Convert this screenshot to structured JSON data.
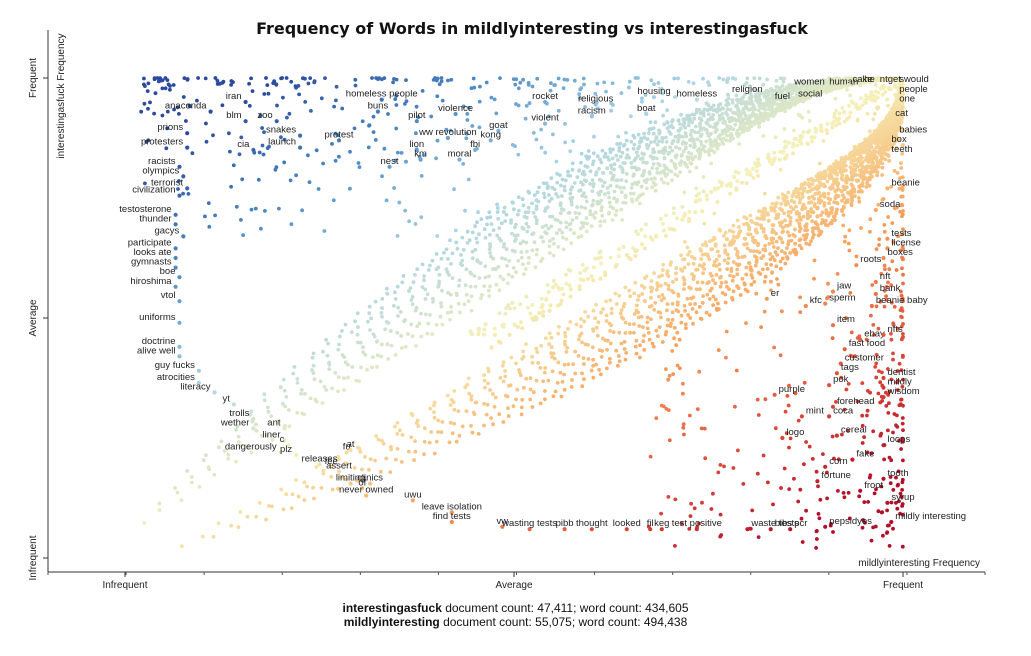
{
  "chart_data": {
    "type": "scatter",
    "title": "Frequency of Words in mildlyinteresting vs interestingasfuck",
    "xlabel": "mildlyinteresting Frequency",
    "ylabel": "interestingasfuck Frequency",
    "x_ticks": [
      "Infrequent",
      "Average",
      "Frequent"
    ],
    "y_ticks": [
      "Infrequent",
      "Average",
      "Frequent"
    ],
    "xlim": [
      0,
      1
    ],
    "ylim": [
      0,
      1
    ],
    "color_scale": [
      "#2b4a9e",
      "#4d8ac2",
      "#a9d3e6",
      "#f5f0b8",
      "#f7a25b",
      "#e0503a",
      "#b0102a"
    ],
    "points": [
      {
        "word": "anaconda",
        "x": 0.11,
        "y": 0.93
      },
      {
        "word": "iran",
        "x": 0.155,
        "y": 0.95
      },
      {
        "word": "blm",
        "x": 0.155,
        "y": 0.91
      },
      {
        "word": "zoo",
        "x": 0.195,
        "y": 0.91
      },
      {
        "word": "prions",
        "x": 0.08,
        "y": 0.885
      },
      {
        "word": "snakes",
        "x": 0.225,
        "y": 0.88
      },
      {
        "word": "protest",
        "x": 0.275,
        "y": 0.87
      },
      {
        "word": "protesters",
        "x": 0.08,
        "y": 0.855
      },
      {
        "word": "cia",
        "x": 0.165,
        "y": 0.85
      },
      {
        "word": "launch",
        "x": 0.225,
        "y": 0.855
      },
      {
        "word": "racists",
        "x": 0.07,
        "y": 0.815
      },
      {
        "word": "olympics",
        "x": 0.075,
        "y": 0.795
      },
      {
        "word": "terrorist",
        "x": 0.08,
        "y": 0.77
      },
      {
        "word": "civilization",
        "x": 0.07,
        "y": 0.755
      },
      {
        "word": "testosterone",
        "x": 0.065,
        "y": 0.715
      },
      {
        "word": "thunder",
        "x": 0.065,
        "y": 0.695
      },
      {
        "word": "gacys",
        "x": 0.075,
        "y": 0.67
      },
      {
        "word": "participate",
        "x": 0.065,
        "y": 0.645
      },
      {
        "word": "looks ate",
        "x": 0.065,
        "y": 0.625
      },
      {
        "word": "gymnasts",
        "x": 0.065,
        "y": 0.605
      },
      {
        "word": "boe",
        "x": 0.07,
        "y": 0.585
      },
      {
        "word": "hiroshima",
        "x": 0.065,
        "y": 0.565
      },
      {
        "word": "vtol",
        "x": 0.07,
        "y": 0.535
      },
      {
        "word": "uniforms",
        "x": 0.07,
        "y": 0.49
      },
      {
        "word": "doctrine",
        "x": 0.07,
        "y": 0.44
      },
      {
        "word": "alive well",
        "x": 0.07,
        "y": 0.42
      },
      {
        "word": "guy fucks",
        "x": 0.095,
        "y": 0.39
      },
      {
        "word": "atrocities",
        "x": 0.095,
        "y": 0.365
      },
      {
        "word": "literacy",
        "x": 0.115,
        "y": 0.345
      },
      {
        "word": "yt",
        "x": 0.14,
        "y": 0.32
      },
      {
        "word": "trolls",
        "x": 0.165,
        "y": 0.29
      },
      {
        "word": "wether",
        "x": 0.165,
        "y": 0.27
      },
      {
        "word": "ant",
        "x": 0.205,
        "y": 0.27
      },
      {
        "word": "liner",
        "x": 0.205,
        "y": 0.245
      },
      {
        "word": "c",
        "x": 0.21,
        "y": 0.235
      },
      {
        "word": "dangerously",
        "x": 0.2,
        "y": 0.22
      },
      {
        "word": "plz",
        "x": 0.22,
        "y": 0.215
      },
      {
        "word": "homeless people",
        "x": 0.33,
        "y": 0.955
      },
      {
        "word": "buns",
        "x": 0.325,
        "y": 0.93
      },
      {
        "word": "pilot",
        "x": 0.375,
        "y": 0.91
      },
      {
        "word": "violence",
        "x": 0.425,
        "y": 0.925
      },
      {
        "word": "ww revolution",
        "x": 0.415,
        "y": 0.875
      },
      {
        "word": "goat",
        "x": 0.48,
        "y": 0.89
      },
      {
        "word": "kong",
        "x": 0.47,
        "y": 0.87
      },
      {
        "word": "lion",
        "x": 0.375,
        "y": 0.85
      },
      {
        "word": "fbi",
        "x": 0.45,
        "y": 0.85
      },
      {
        "word": "km",
        "x": 0.38,
        "y": 0.83
      },
      {
        "word": "moral",
        "x": 0.43,
        "y": 0.83
      },
      {
        "word": "nest",
        "x": 0.34,
        "y": 0.815
      },
      {
        "word": "rocket",
        "x": 0.54,
        "y": 0.95
      },
      {
        "word": "violent",
        "x": 0.54,
        "y": 0.905
      },
      {
        "word": "religious",
        "x": 0.605,
        "y": 0.945
      },
      {
        "word": "racism",
        "x": 0.6,
        "y": 0.92
      },
      {
        "word": "housing",
        "x": 0.68,
        "y": 0.96
      },
      {
        "word": "boat",
        "x": 0.67,
        "y": 0.925
      },
      {
        "word": "homeless",
        "x": 0.735,
        "y": 0.955
      },
      {
        "word": "religion",
        "x": 0.775,
        "y": 0.965
      },
      {
        "word": "women",
        "x": 0.855,
        "y": 0.98
      },
      {
        "word": "human",
        "x": 0.9,
        "y": 0.98
      },
      {
        "word": "cake",
        "x": 0.93,
        "y": 0.985
      },
      {
        "word": "he",
        "x": 0.945,
        "y": 0.985
      },
      {
        "word": "ntget",
        "x": 0.965,
        "y": 0.985
      },
      {
        "word": "swould",
        "x": 0.99,
        "y": 0.985
      },
      {
        "word": "social",
        "x": 0.86,
        "y": 0.955
      },
      {
        "word": "fuel",
        "x": 0.83,
        "y": 0.95
      },
      {
        "word": "people",
        "x": 0.99,
        "y": 0.965
      },
      {
        "word": "one",
        "x": 0.99,
        "y": 0.945
      },
      {
        "word": "cat",
        "x": 0.985,
        "y": 0.915
      },
      {
        "word": "babies",
        "x": 0.99,
        "y": 0.88
      },
      {
        "word": "box",
        "x": 0.98,
        "y": 0.86
      },
      {
        "word": "teeth",
        "x": 0.98,
        "y": 0.84
      },
      {
        "word": "beanie",
        "x": 0.98,
        "y": 0.77
      },
      {
        "word": "soda",
        "x": 0.965,
        "y": 0.725
      },
      {
        "word": "tests",
        "x": 0.98,
        "y": 0.665
      },
      {
        "word": "license",
        "x": 0.98,
        "y": 0.645
      },
      {
        "word": "boxes",
        "x": 0.975,
        "y": 0.625
      },
      {
        "word": "roots",
        "x": 0.94,
        "y": 0.61
      },
      {
        "word": "nft",
        "x": 0.965,
        "y": 0.575
      },
      {
        "word": "jaw",
        "x": 0.91,
        "y": 0.555
      },
      {
        "word": "bank",
        "x": 0.965,
        "y": 0.55
      },
      {
        "word": "er",
        "x": 0.825,
        "y": 0.54
      },
      {
        "word": "kfc",
        "x": 0.875,
        "y": 0.525
      },
      {
        "word": "sperm",
        "x": 0.9,
        "y": 0.53
      },
      {
        "word": "beanie baby",
        "x": 0.96,
        "y": 0.525
      },
      {
        "word": "item",
        "x": 0.91,
        "y": 0.485
      },
      {
        "word": "ebay",
        "x": 0.945,
        "y": 0.455
      },
      {
        "word": "nfts",
        "x": 0.975,
        "y": 0.465
      },
      {
        "word": "fast food",
        "x": 0.925,
        "y": 0.435
      },
      {
        "word": "customer",
        "x": 0.92,
        "y": 0.405
      },
      {
        "word": "tags",
        "x": 0.915,
        "y": 0.385
      },
      {
        "word": "dentist",
        "x": 0.975,
        "y": 0.375
      },
      {
        "word": "pok",
        "x": 0.905,
        "y": 0.36
      },
      {
        "word": "mildly",
        "x": 0.975,
        "y": 0.355
      },
      {
        "word": "purple",
        "x": 0.835,
        "y": 0.34
      },
      {
        "word": "wisdom",
        "x": 0.975,
        "y": 0.335
      },
      {
        "word": "forehead",
        "x": 0.91,
        "y": 0.315
      },
      {
        "word": "mint",
        "x": 0.87,
        "y": 0.295
      },
      {
        "word": "coca",
        "x": 0.905,
        "y": 0.295
      },
      {
        "word": "cereal",
        "x": 0.915,
        "y": 0.255
      },
      {
        "word": "logo",
        "x": 0.845,
        "y": 0.25
      },
      {
        "word": "loops",
        "x": 0.975,
        "y": 0.235
      },
      {
        "word": "fake",
        "x": 0.935,
        "y": 0.205
      },
      {
        "word": "corn",
        "x": 0.9,
        "y": 0.19
      },
      {
        "word": "tooth",
        "x": 0.975,
        "y": 0.165
      },
      {
        "word": "fortune",
        "x": 0.89,
        "y": 0.16
      },
      {
        "word": "froot",
        "x": 0.945,
        "y": 0.14
      },
      {
        "word": "syrup",
        "x": 0.98,
        "y": 0.115
      },
      {
        "word": "mildly interesting",
        "x": 0.985,
        "y": 0.075
      },
      {
        "word": "pepsidyes",
        "x": 0.9,
        "y": 0.065
      },
      {
        "word": "fu",
        "x": 0.285,
        "y": 0.22
      },
      {
        "word": "at",
        "x": 0.29,
        "y": 0.225
      },
      {
        "word": "releases",
        "x": 0.25,
        "y": 0.195
      },
      {
        "word": "fee",
        "x": 0.265,
        "y": 0.19
      },
      {
        "word": "assert",
        "x": 0.275,
        "y": 0.18
      },
      {
        "word": "limiting",
        "x": 0.29,
        "y": 0.155
      },
      {
        "word": "of",
        "x": 0.305,
        "y": 0.145
      },
      {
        "word": "clinics",
        "x": 0.315,
        "y": 0.155
      },
      {
        "word": "never owned",
        "x": 0.31,
        "y": 0.13
      },
      {
        "word": "uwu",
        "x": 0.37,
        "y": 0.12
      },
      {
        "word": "leave isolation",
        "x": 0.42,
        "y": 0.095
      },
      {
        "word": "find tests",
        "x": 0.42,
        "y": 0.075
      },
      {
        "word": "vw",
        "x": 0.485,
        "y": 0.065
      },
      {
        "word": "wasting tests",
        "x": 0.52,
        "y": 0.06
      },
      {
        "word": "pibb",
        "x": 0.565,
        "y": 0.06
      },
      {
        "word": "thought",
        "x": 0.6,
        "y": 0.06
      },
      {
        "word": "looked",
        "x": 0.645,
        "y": 0.06
      },
      {
        "word": "fil",
        "x": 0.675,
        "y": 0.06
      },
      {
        "word": "keg",
        "x": 0.69,
        "y": 0.06
      },
      {
        "word": "test positive",
        "x": 0.735,
        "y": 0.06
      },
      {
        "word": "waste tests",
        "x": 0.8,
        "y": 0.06
      },
      {
        "word": "bibs",
        "x": 0.83,
        "y": 0.06
      },
      {
        "word": "pcr",
        "x": 0.855,
        "y": 0.06
      }
    ]
  },
  "footer": {
    "line1_name": "interestingasfuck",
    "line1_rest": " document count: 47,411; word count: 434,605",
    "line2_name": "mildlyinteresting",
    "line2_rest": " document count: 55,075; word count: 494,438"
  }
}
